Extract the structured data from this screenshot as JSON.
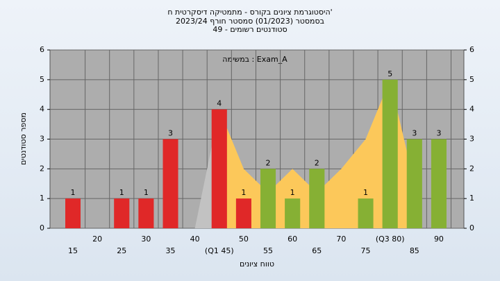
{
  "chart_data": {
    "type": "bar",
    "title": [
      "היסטוגרמת ציונים בקורס - מתמטיקה דיסקרטית ח'",
      "בסמסטר (01/2023) סמסטר חורף 2023/24",
      "49 - סטודנטים רשומים"
    ],
    "annotation": "במשימה : Exam_A",
    "xlabel": "טווח ציונים",
    "ylabel": "מספר סטודנטים",
    "categories": [
      "15",
      "20",
      "25",
      "30",
      "35",
      "40",
      "(Q1 45)",
      "50",
      "55",
      "60",
      "65",
      "70",
      "75",
      "(Q3 80)",
      "85",
      "90"
    ],
    "values": [
      1,
      0,
      1,
      1,
      3,
      0,
      4,
      1,
      2,
      1,
      2,
      0,
      1,
      5,
      3,
      3
    ],
    "colors": [
      "#e02828",
      "#e02828",
      "#e02828",
      "#e02828",
      "#e02828",
      "#e02828",
      "#e02828",
      "#e02828",
      "#86b034",
      "#86b034",
      "#86b034",
      "#86b034",
      "#86b034",
      "#86b034",
      "#86b034",
      "#86b034"
    ],
    "area": [
      {
        "color": "#c2c2c2",
        "values": [
          null,
          null,
          null,
          null,
          null,
          0,
          4,
          null,
          null,
          null,
          null,
          null,
          null,
          null,
          null,
          null
        ]
      },
      {
        "color": "#fcc85a",
        "values": [
          null,
          null,
          null,
          null,
          null,
          null,
          4,
          2,
          1.2,
          2,
          1.2,
          2,
          3,
          5,
          1.5,
          null
        ]
      }
    ],
    "ylim": [
      0,
      6
    ],
    "yticks": [
      0,
      1,
      2,
      3,
      4,
      5,
      6
    ],
    "y2lim": [
      0,
      6
    ],
    "y2ticks": [
      0,
      1,
      2,
      3,
      4,
      5,
      6
    ],
    "grid": true
  }
}
